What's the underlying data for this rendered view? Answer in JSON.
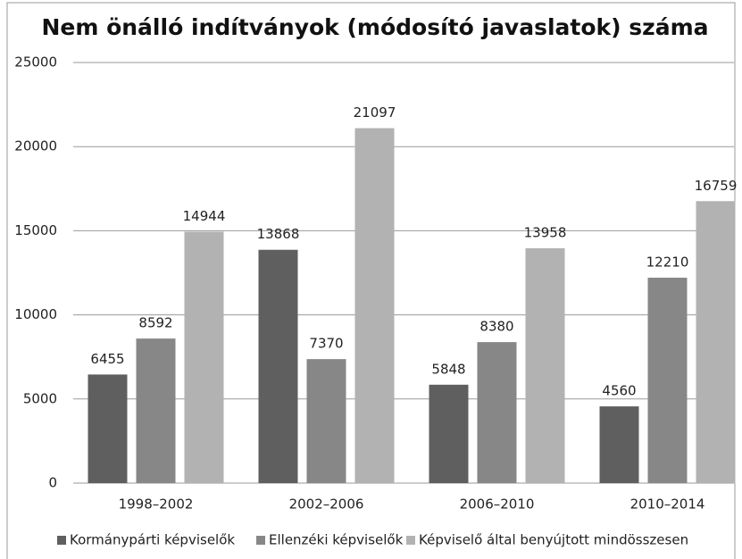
{
  "chart_data": {
    "type": "bar",
    "title": "Nem önálló indítványok (módosító javaslatok) száma",
    "categories": [
      "1998–2002",
      "2002–2006",
      "2006–2010",
      "2010–2014"
    ],
    "series": [
      {
        "name": "Kormánypárti képviselők",
        "color": "#5f5f5f",
        "values": [
          6455,
          13868,
          5848,
          4560
        ]
      },
      {
        "name": "Ellenzéki képviselők",
        "color": "#878787",
        "values": [
          8592,
          7370,
          8380,
          12210
        ]
      },
      {
        "name": "Képviselő által benyújtott mindösszesen",
        "color": "#b2b2b2",
        "values": [
          14944,
          21097,
          13958,
          16759
        ]
      }
    ],
    "ylim": [
      0,
      25000
    ],
    "yticks": [
      0,
      5000,
      10000,
      15000,
      20000,
      25000
    ],
    "grid": true,
    "legend": "bottom"
  }
}
